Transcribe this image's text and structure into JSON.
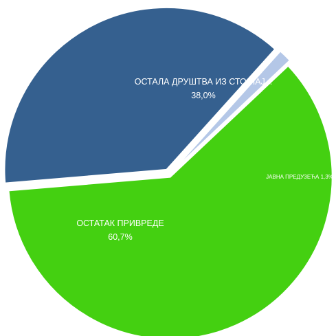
{
  "chart_data": {
    "type": "pie",
    "slices": [
      {
        "label": "ОСТАЛА ДРУШТВА ИЗ СТО НАЈ...",
        "value": 38.0,
        "value_text": "38,0%",
        "color": "#35608f"
      },
      {
        "label": "ЈАВНА ПРЕДУЗЕЋА",
        "value": 1.3,
        "value_text": "1,3%",
        "color": "#b4c7e7"
      },
      {
        "label": "ОСТАТАК ПРИВРЕДЕ",
        "value": 60.7,
        "value_text": "60,7%",
        "color": "#44d011"
      }
    ]
  }
}
